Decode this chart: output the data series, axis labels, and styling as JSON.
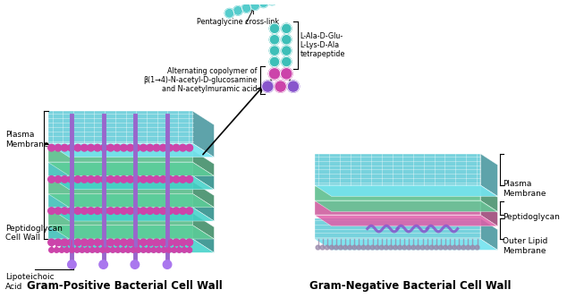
{
  "title_left": "Gram-Positive Bacterial Cell Wall",
  "title_right": "Gram-Negative Bacterial Cell Wall",
  "bg_color": "#ffffff",
  "label_lipoteichoic": "Lipoteichoic\nAcid",
  "label_peptidoglycan_left": "Peptidoglycan\nCell Wall",
  "label_plasma_left": "Plasma\nMembrane",
  "label_outer_lipid": "Outer Lipid\nMembrane",
  "label_peptidoglycan_right": "Peptidoglycan",
  "label_plasma_right": "Plasma\nMembrane",
  "label_alternating": "Alternating copolymer of\nβ(1→4)-N-acetyl-D-glucosamine\nand N-acetylmuramic acid",
  "label_pentaglycine": "Pentaglycine cross-link",
  "label_tetrapeptide": "L-Ala-D-Glu-\nL-Lys-D-Ala\ntetrapeptide",
  "color_cyan": "#6BCFDA",
  "color_teal": "#3DBFB8",
  "color_magenta": "#CC44AA",
  "color_purple": "#8855CC",
  "color_green": "#55BB88",
  "color_light_cyan": "#55CCCC",
  "color_pink": "#CC5599",
  "color_rod": "#9966CC"
}
